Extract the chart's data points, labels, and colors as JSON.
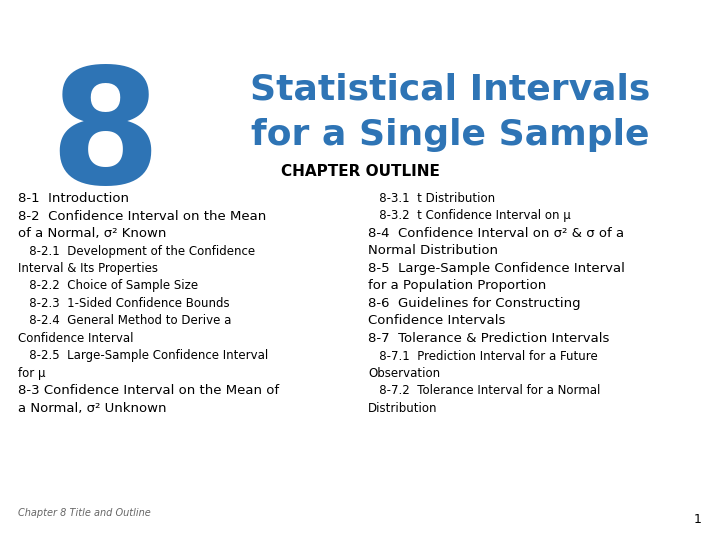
{
  "bg_color": "#ffffff",
  "chapter_number": "8",
  "chapter_number_color": "#2E74B5",
  "title_line1": "Statistical Intervals",
  "title_line2": "for a Single Sample",
  "title_color": "#2E74B5",
  "chapter_outline_label": "CHAPTER OUTLINE",
  "left_column": [
    {
      "text": "8-1  Introduction",
      "size": 9.5,
      "bold": false
    },
    {
      "text": "8-2  Confidence Interval on the Mean",
      "size": 9.5,
      "bold": false
    },
    {
      "text": "of a Normal, σ² Known",
      "size": 9.5,
      "bold": false
    },
    {
      "text": "   8-2.1  Development of the Confidence",
      "size": 8.5,
      "bold": false
    },
    {
      "text": "Interval & Its Properties",
      "size": 8.5,
      "bold": false
    },
    {
      "text": "   8-2.2  Choice of Sample Size",
      "size": 8.5,
      "bold": false
    },
    {
      "text": "   8-2.3  1-Sided Confidence Bounds",
      "size": 8.5,
      "bold": false
    },
    {
      "text": "   8-2.4  General Method to Derive a",
      "size": 8.5,
      "bold": false
    },
    {
      "text": "Confidence Interval",
      "size": 8.5,
      "bold": false
    },
    {
      "text": "   8-2.5  Large-Sample Confidence Interval",
      "size": 8.5,
      "bold": false
    },
    {
      "text": "for μ",
      "size": 8.5,
      "bold": false
    },
    {
      "text": "8-3 Confidence Interval on the Mean of",
      "size": 9.5,
      "bold": false
    },
    {
      "text": "a Normal, σ² Unknown",
      "size": 9.5,
      "bold": false
    }
  ],
  "right_column": [
    {
      "text": "   8-3.1  t Distribution",
      "size": 8.5,
      "bold": false
    },
    {
      "text": "   8-3.2  t Confidence Interval on μ",
      "size": 8.5,
      "bold": false
    },
    {
      "text": "8-4  Confidence Interval on σ² & σ of a",
      "size": 9.5,
      "bold": false
    },
    {
      "text": "Normal Distribution",
      "size": 9.5,
      "bold": false
    },
    {
      "text": "8-5  Large-Sample Confidence Interval",
      "size": 9.5,
      "bold": false
    },
    {
      "text": "for a Population Proportion",
      "size": 9.5,
      "bold": false
    },
    {
      "text": "8-6  Guidelines for Constructing",
      "size": 9.5,
      "bold": false
    },
    {
      "text": "Confidence Intervals",
      "size": 9.5,
      "bold": false
    },
    {
      "text": "8-7  Tolerance & Prediction Intervals",
      "size": 9.5,
      "bold": false
    },
    {
      "text": "   8-7.1  Prediction Interval for a Future",
      "size": 8.5,
      "bold": false
    },
    {
      "text": "Observation",
      "size": 8.5,
      "bold": false
    },
    {
      "text": "   8-7.2  Tolerance Interval for a Normal",
      "size": 8.5,
      "bold": false
    },
    {
      "text": "Distribution",
      "size": 8.5,
      "bold": false
    }
  ],
  "footer_text": "Chapter 8 Title and Outline",
  "page_number": "1"
}
